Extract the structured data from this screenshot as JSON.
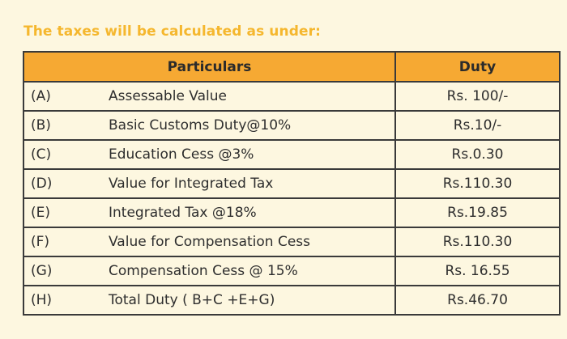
{
  "heading": "The taxes will be calculated as under:",
  "table": {
    "headers": {
      "particulars": "Particulars",
      "duty": "Duty"
    },
    "rows": [
      {
        "code": "(A)",
        "particular": "Assessable Value",
        "duty": "Rs. 100/-"
      },
      {
        "code": "(B)",
        "particular": "Basic Customs Duty@10%",
        "duty": "Rs.10/-"
      },
      {
        "code": "(C)",
        "particular": "Education Cess @3%",
        "duty": "Rs.0.30"
      },
      {
        "code": "(D)",
        "particular": "Value for Integrated Tax",
        "duty": "Rs.110.30"
      },
      {
        "code": "(E)",
        "particular": "Integrated Tax @18%",
        "duty": "Rs.19.85"
      },
      {
        "code": "(F)",
        "particular": "Value for Compensation Cess",
        "duty": "Rs.110.30"
      },
      {
        "code": "(G)",
        "particular": "Compensation Cess @ 15%",
        "duty": "Rs. 16.55"
      },
      {
        "code": "(H)",
        "particular": "Total Duty ( B+C +E+G)",
        "duty": "Rs.46.70"
      }
    ]
  },
  "colors": {
    "heading": "#f5b72e",
    "header_fill": "#f6a933",
    "background": "#fdf7e0",
    "border": "#3a3a3a"
  }
}
